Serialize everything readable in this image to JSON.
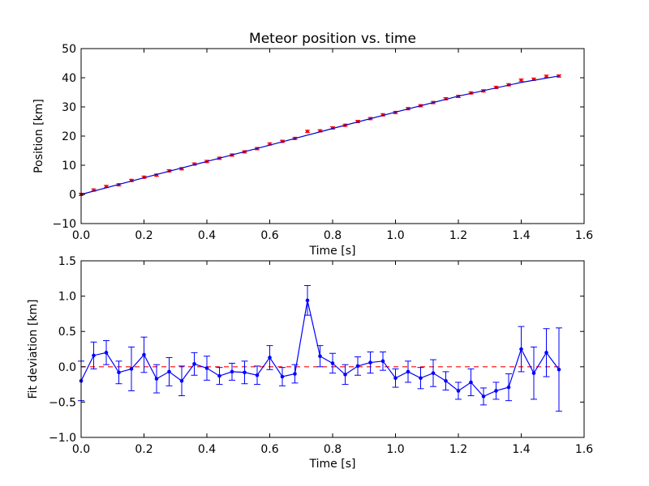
{
  "chart_data": [
    {
      "type": "scatter",
      "title": "Meteor position vs. time",
      "xlabel": "Time [s]",
      "ylabel": "Position [km]",
      "xlim": [
        0.0,
        1.6
      ],
      "ylim": [
        -10,
        50
      ],
      "xticks": [
        "0.0",
        "0.2",
        "0.4",
        "0.6",
        "0.8",
        "1.0",
        "1.2",
        "1.4",
        "1.6"
      ],
      "yticks": [
        "−10",
        "0",
        "10",
        "20",
        "30",
        "40",
        "50"
      ],
      "grid": false,
      "series": [
        {
          "kind": "errorbar-points",
          "color": "#ff0000",
          "x": [
            0.0,
            0.04,
            0.08,
            0.12,
            0.16,
            0.2,
            0.24,
            0.28,
            0.32,
            0.36,
            0.4,
            0.44,
            0.48,
            0.52,
            0.56,
            0.6,
            0.64,
            0.68,
            0.72,
            0.76,
            0.8,
            0.84,
            0.88,
            0.92,
            0.96,
            1.0,
            1.04,
            1.08,
            1.12,
            1.16,
            1.2,
            1.24,
            1.28,
            1.32,
            1.36,
            1.4,
            1.44,
            1.48,
            1.52
          ],
          "y": [
            0.0,
            1.5,
            2.7,
            3.3,
            4.8,
            5.9,
            6.6,
            8.1,
            8.8,
            10.4,
            11.3,
            12.4,
            13.5,
            14.6,
            15.7,
            17.3,
            18.2,
            19.2,
            21.6,
            21.8,
            22.8,
            23.7,
            25.0,
            26.0,
            27.3,
            28.1,
            29.4,
            30.4,
            31.5,
            32.8,
            33.6,
            34.8,
            35.5,
            36.7,
            37.6,
            39.2,
            39.5,
            40.5,
            40.6
          ],
          "yerr": 0.4
        },
        {
          "kind": "fit-line",
          "color": "#0000cc",
          "x": [
            0.0,
            0.2,
            0.4,
            0.6,
            0.8,
            1.0,
            1.2,
            1.4,
            1.52
          ],
          "y": [
            0.0,
            5.7,
            11.3,
            16.9,
            22.6,
            28.2,
            33.7,
            38.4,
            40.6
          ]
        }
      ]
    },
    {
      "type": "line",
      "xlabel": "Time [s]",
      "ylabel": "Fit deviation [km]",
      "xlim": [
        0.0,
        1.6
      ],
      "ylim": [
        -1.0,
        1.5
      ],
      "xticks": [
        "0.0",
        "0.2",
        "0.4",
        "0.6",
        "0.8",
        "1.0",
        "1.2",
        "1.4",
        "1.6"
      ],
      "yticks": [
        "−1.0",
        "−0.5",
        "0.0",
        "0.5",
        "1.0",
        "1.5"
      ],
      "grid": false,
      "reference_line": {
        "y": 0.0,
        "color": "#ff0000",
        "style": "dashed"
      },
      "series": [
        {
          "kind": "errorbar-line",
          "color": "#0000ff",
          "x": [
            0.0,
            0.04,
            0.08,
            0.12,
            0.16,
            0.2,
            0.24,
            0.28,
            0.32,
            0.36,
            0.4,
            0.44,
            0.48,
            0.52,
            0.56,
            0.6,
            0.64,
            0.68,
            0.72,
            0.76,
            0.8,
            0.84,
            0.88,
            0.92,
            0.96,
            1.0,
            1.04,
            1.08,
            1.12,
            1.16,
            1.2,
            1.24,
            1.28,
            1.32,
            1.36,
            1.4,
            1.44,
            1.48,
            1.52
          ],
          "y": [
            -0.2,
            0.16,
            0.2,
            -0.08,
            -0.03,
            0.17,
            -0.17,
            -0.07,
            -0.2,
            0.04,
            -0.02,
            -0.13,
            -0.07,
            -0.08,
            -0.12,
            0.13,
            -0.14,
            -0.1,
            0.94,
            0.15,
            0.05,
            -0.11,
            0.01,
            0.06,
            0.08,
            -0.16,
            -0.07,
            -0.16,
            -0.09,
            -0.2,
            -0.34,
            -0.22,
            -0.42,
            -0.34,
            -0.29,
            0.25,
            -0.09,
            0.2,
            -0.04
          ],
          "yerr": [
            0.28,
            0.19,
            0.17,
            0.16,
            0.31,
            0.25,
            0.2,
            0.2,
            0.21,
            0.16,
            0.17,
            0.12,
            0.12,
            0.16,
            0.13,
            0.17,
            0.13,
            0.13,
            0.21,
            0.15,
            0.14,
            0.14,
            0.13,
            0.15,
            0.13,
            0.13,
            0.15,
            0.15,
            0.19,
            0.13,
            0.12,
            0.19,
            0.12,
            0.12,
            0.19,
            0.32,
            0.37,
            0.34,
            0.59
          ]
        }
      ]
    }
  ]
}
